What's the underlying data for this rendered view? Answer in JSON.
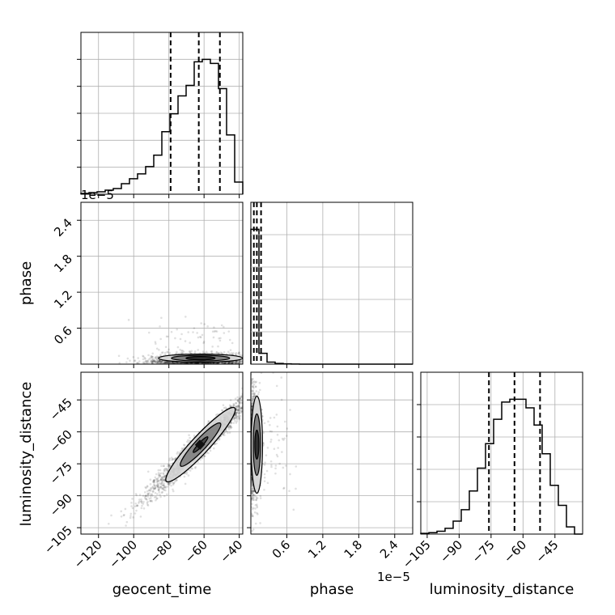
{
  "chart_data": {
    "type": "corner",
    "title": "",
    "parameters": [
      "geocent_time",
      "phase",
      "luminosity_distance"
    ],
    "axis_labels": {
      "geocent_time": "geocent_time",
      "phase": "phase",
      "luminosity_distance": "luminosity_distance"
    },
    "ranges": {
      "geocent_time": [
        -130,
        -38
      ],
      "phase": [
        0,
        2.7
      ],
      "luminosity_distance": [
        -108,
        -32
      ]
    },
    "ticks": {
      "geocent_time": [
        -120,
        -100,
        -80,
        -60,
        -40
      ],
      "phase": [
        0.6,
        1.2,
        1.8,
        2.4
      ],
      "luminosity_distance": [
        -105,
        -90,
        -75,
        -60,
        -45
      ]
    },
    "tick_labels": {
      "geocent_time": [
        "−120",
        "−100",
        "−80",
        "−60",
        "−40"
      ],
      "phase": [
        "0.6",
        "1.2",
        "1.8",
        "2.4"
      ],
      "luminosity_distance": [
        "−105",
        "−90",
        "−75",
        "−60",
        "−45"
      ]
    },
    "offset_labels": {
      "phase_y": "1e−5",
      "phase_x": "1e−5"
    },
    "quantiles": {
      "geocent_time": [
        -79,
        -63,
        -51
      ],
      "phase": [
        0.05,
        0.1,
        0.17
      ],
      "luminosity_distance": [
        -76,
        -64,
        -52
      ]
    },
    "histograms": {
      "geocent_time": {
        "edges": [
          -130,
          -125.4,
          -120.8,
          -116.2,
          -111.6,
          -107,
          -102.4,
          -97.8,
          -93.2,
          -88.6,
          -84,
          -79.4,
          -74.8,
          -70.2,
          -65.6,
          -61,
          -56.4,
          -51.8,
          -47.2,
          -42.6,
          -38
        ],
        "counts": [
          1,
          2,
          3,
          5,
          7,
          13,
          19,
          25,
          34,
          48,
          77,
          99,
          121,
          134,
          163,
          166,
          161,
          130,
          73,
          15
        ]
      },
      "phase": {
        "edges": [
          0,
          0.135,
          0.27,
          0.405,
          0.54,
          0.675,
          0.81,
          0.945,
          1.08,
          1.215,
          1.35,
          1.485,
          1.62,
          1.755,
          1.89,
          2.025,
          2.16,
          2.295,
          2.43,
          2.565,
          2.7
        ],
        "counts": [
          100,
          8,
          1.5,
          0.5,
          0.2,
          0.1,
          0,
          0,
          0,
          0,
          0,
          0,
          0,
          0,
          0,
          0,
          0,
          0,
          0,
          0
        ]
      },
      "luminosity_distance": {
        "edges": [
          -108,
          -104.2,
          -100.4,
          -96.6,
          -92.8,
          -89,
          -85.2,
          -81.4,
          -77.6,
          -73.8,
          -70,
          -66.2,
          -62.4,
          -58.6,
          -54.8,
          -51,
          -47.2,
          -43.4,
          -39.6,
          -35.8,
          -32
        ],
        "counts": [
          0.5,
          1,
          2,
          4,
          9,
          17,
          30,
          46,
          63,
          80,
          92,
          94,
          94,
          88,
          76,
          56,
          34,
          20,
          5,
          0
        ]
      }
    },
    "joint": {
      "geocent_time_vs_luminosity_distance": {
        "description_free": true,
        "mean": [
          -62,
          -66
        ],
        "std": [
          15,
          12
        ],
        "correlation": 0.97,
        "contour_levels": 3
      },
      "geocent_time_vs_phase": {
        "mean": [
          -62,
          0.1
        ],
        "contour_levels": 3
      },
      "phase_vs_luminosity_distance": {
        "mean": [
          0.1,
          -66
        ],
        "contour_levels": 3
      }
    },
    "grid": true
  }
}
